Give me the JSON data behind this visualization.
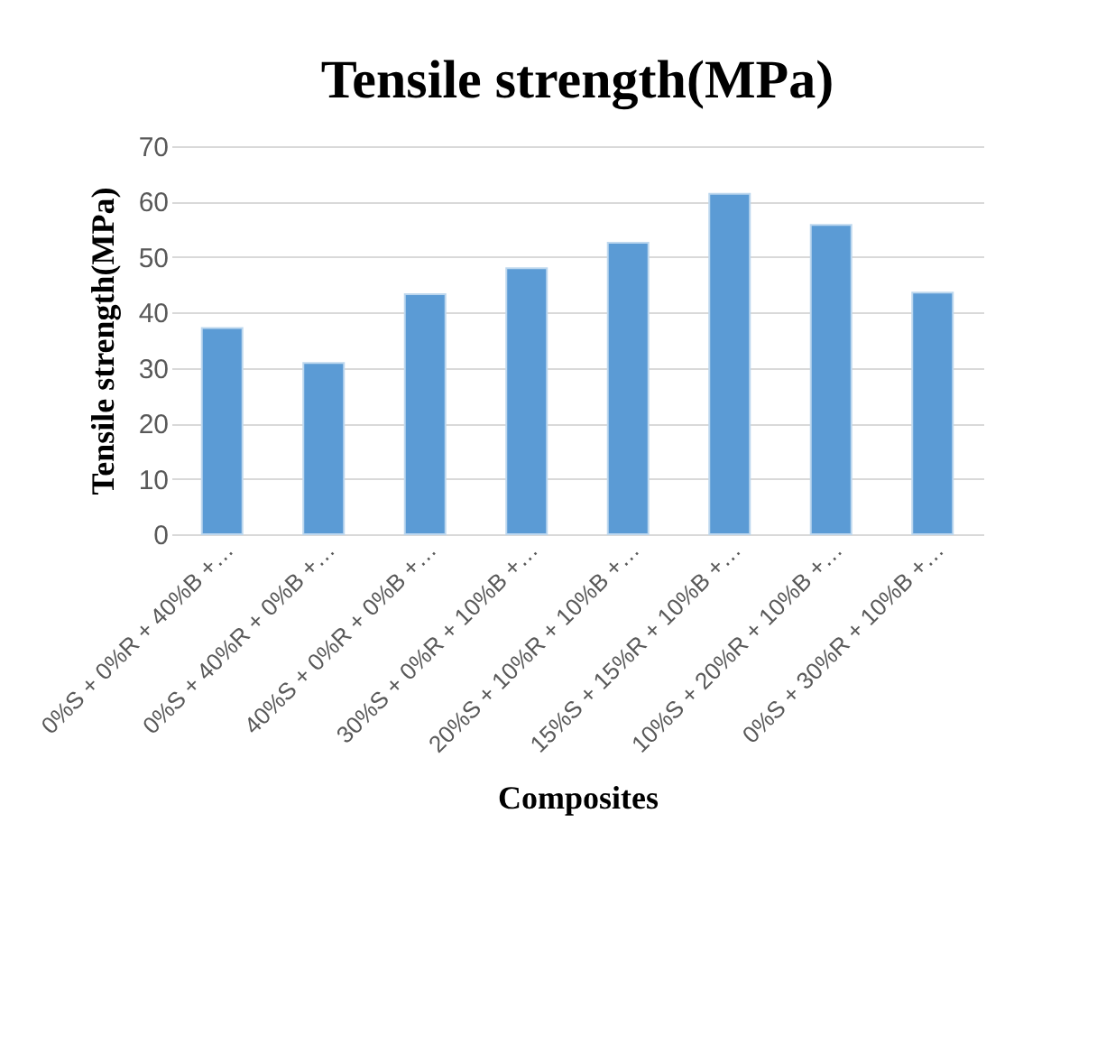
{
  "chart_data": {
    "type": "bar",
    "title": "Tensile strength(MPa)",
    "xlabel": "Composites",
    "ylabel": "Tensile strength(MPa)",
    "categories": [
      "0%S + 0%R + 40%B +…",
      "0%S + 40%R + 0%B +…",
      "40%S + 0%R + 0%B +…",
      "30%S + 0%R + 10%B +…",
      "20%S + 10%R + 10%B +…",
      "15%S + 15%R + 10%B +…",
      "10%S + 20%R + 10%B +…",
      "0%S + 30%R + 10%B +…"
    ],
    "values": [
      37.2,
      30.9,
      43.3,
      48.0,
      52.6,
      61.4,
      55.8,
      43.6
    ],
    "color": "#5b9bd5",
    "ylim": [
      0,
      70
    ],
    "yticks": [
      0,
      10,
      20,
      30,
      40,
      50,
      60,
      70
    ],
    "grid": "y"
  }
}
